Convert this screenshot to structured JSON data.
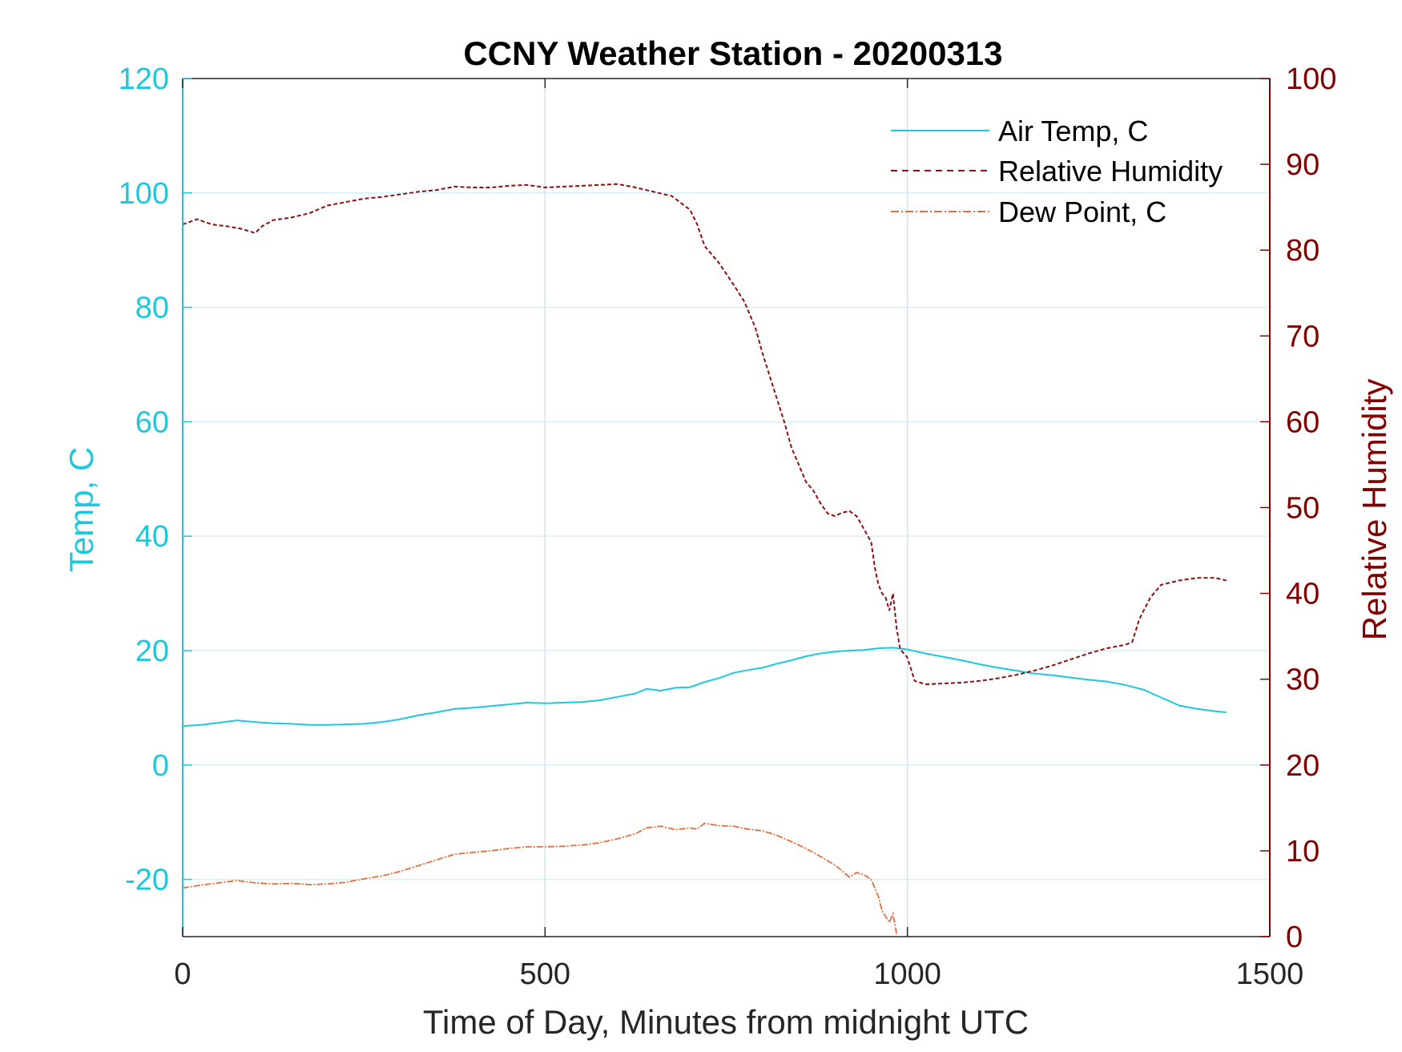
{
  "chart_data": {
    "type": "line",
    "title": "CCNY Weather Station - 20200313",
    "xlabel": "Time of Day, Minutes from midnight UTC",
    "ylabel_left": "Temp, C",
    "ylabel_right": "Relative Humidity",
    "xlim": [
      0,
      1500
    ],
    "ylim_left": [
      -30,
      120
    ],
    "ylim_right": [
      0,
      100
    ],
    "xticks": [
      0,
      500,
      1000,
      1500
    ],
    "xtick_labels": [
      "0",
      "500",
      "1000",
      "1500"
    ],
    "yticks_left": [
      -20,
      0,
      20,
      40,
      60,
      80,
      100,
      120
    ],
    "ytick_labels_left": [
      "-20",
      "0",
      "20",
      "40",
      "60",
      "80",
      "100",
      "120"
    ],
    "yticks_right": [
      0,
      10,
      20,
      30,
      40,
      50,
      60,
      70,
      80,
      90,
      100
    ],
    "ytick_labels_right": [
      "0",
      "10",
      "20",
      "30",
      "40",
      "50",
      "60",
      "70",
      "80",
      "90",
      "100"
    ],
    "grid": true,
    "legend_position": "top-right",
    "colors": {
      "left_axis": "#1ec8dc",
      "right_axis": "#800000",
      "grid": "#d8e2ea",
      "hgrid": "#d4f1f7",
      "air_temp": "#1ec8dc",
      "humidity": "#8b1010",
      "dew_point": "#e07040"
    },
    "series": [
      {
        "name": "Air Temp, C",
        "axis": "left",
        "style": "solid",
        "x": [
          0,
          25,
          50,
          75,
          100,
          125,
          150,
          175,
          200,
          225,
          250,
          275,
          300,
          325,
          350,
          375,
          400,
          425,
          450,
          475,
          500,
          525,
          550,
          575,
          600,
          625,
          640,
          660,
          680,
          700,
          720,
          740,
          760,
          780,
          800,
          820,
          840,
          860,
          880,
          900,
          920,
          940,
          960,
          980,
          1000,
          1025,
          1050,
          1075,
          1100,
          1125,
          1150,
          1175,
          1200,
          1225,
          1250,
          1275,
          1300,
          1325,
          1350,
          1375,
          1400,
          1425,
          1440
        ],
        "values": [
          6.8,
          7.0,
          7.4,
          7.8,
          7.5,
          7.3,
          7.2,
          7.0,
          7.0,
          7.1,
          7.2,
          7.5,
          8.0,
          8.7,
          9.2,
          9.8,
          10.0,
          10.3,
          10.6,
          10.9,
          10.8,
          10.9,
          11.0,
          11.3,
          11.9,
          12.5,
          13.3,
          13.0,
          13.5,
          13.6,
          14.5,
          15.2,
          16.1,
          16.6,
          17.0,
          17.7,
          18.3,
          19.0,
          19.5,
          19.8,
          20.0,
          20.1,
          20.4,
          20.5,
          20.2,
          19.5,
          18.9,
          18.3,
          17.6,
          17.0,
          16.5,
          16.0,
          15.7,
          15.3,
          14.9,
          14.6,
          14.0,
          13.2,
          11.8,
          10.4,
          9.8,
          9.4,
          9.2
        ]
      },
      {
        "name": "Relative Humidity",
        "axis": "right",
        "style": "dashed",
        "x": [
          0,
          20,
          40,
          60,
          80,
          100,
          110,
          125,
          150,
          175,
          200,
          225,
          250,
          275,
          300,
          325,
          350,
          375,
          400,
          425,
          450,
          475,
          500,
          525,
          550,
          575,
          600,
          625,
          650,
          675,
          700,
          710,
          720,
          740,
          760,
          775,
          790,
          800,
          815,
          830,
          840,
          850,
          860,
          870,
          880,
          890,
          900,
          910,
          920,
          930,
          940,
          950,
          955,
          960,
          965,
          970,
          975,
          980,
          985,
          990,
          1000,
          1010,
          1025,
          1050,
          1075,
          1100,
          1125,
          1150,
          1175,
          1200,
          1225,
          1250,
          1275,
          1300,
          1310,
          1320,
          1335,
          1350,
          1375,
          1400,
          1425,
          1440
        ],
        "values": [
          83.0,
          83.6,
          83.0,
          82.8,
          82.5,
          82.0,
          82.8,
          83.5,
          83.8,
          84.3,
          85.2,
          85.6,
          86.0,
          86.2,
          86.5,
          86.8,
          87.0,
          87.4,
          87.3,
          87.3,
          87.5,
          87.6,
          87.3,
          87.4,
          87.5,
          87.6,
          87.7,
          87.3,
          86.8,
          86.3,
          84.7,
          83.0,
          80.5,
          78.5,
          76.0,
          74.0,
          71.0,
          68.0,
          64.0,
          60.0,
          57.0,
          55.0,
          53.0,
          52.0,
          50.5,
          49.3,
          49.0,
          49.4,
          49.6,
          49.0,
          47.5,
          46.0,
          43.0,
          41.0,
          40.0,
          39.5,
          38.0,
          40.0,
          36.0,
          33.5,
          32.5,
          29.8,
          29.4,
          29.5,
          29.6,
          29.8,
          30.1,
          30.5,
          31.0,
          31.6,
          32.3,
          33.0,
          33.6,
          34.0,
          34.3,
          37.0,
          39.5,
          41.0,
          41.5,
          41.8,
          41.8,
          41.5
        ]
      },
      {
        "name": "Dew Point, C",
        "axis": "left",
        "style": "dashdot",
        "x": [
          0,
          25,
          50,
          75,
          100,
          125,
          150,
          175,
          200,
          225,
          250,
          275,
          300,
          325,
          350,
          375,
          400,
          425,
          450,
          475,
          500,
          525,
          550,
          575,
          600,
          625,
          640,
          660,
          680,
          700,
          710,
          720,
          740,
          760,
          780,
          800,
          820,
          840,
          860,
          880,
          900,
          910,
          920,
          930,
          940,
          950,
          960,
          965,
          970,
          975,
          980,
          985
        ],
        "values": [
          -21.5,
          -21.0,
          -20.6,
          -20.2,
          -20.6,
          -20.8,
          -20.7,
          -20.9,
          -20.8,
          -20.5,
          -19.9,
          -19.4,
          -18.6,
          -17.6,
          -16.6,
          -15.6,
          -15.3,
          -15.0,
          -14.6,
          -14.3,
          -14.3,
          -14.2,
          -14.0,
          -13.6,
          -12.9,
          -12.0,
          -11.0,
          -10.7,
          -11.3,
          -11.0,
          -11.2,
          -10.2,
          -10.6,
          -10.7,
          -11.2,
          -11.5,
          -12.3,
          -13.4,
          -14.6,
          -16.0,
          -17.5,
          -18.5,
          -19.6,
          -18.8,
          -19.2,
          -20.0,
          -23.0,
          -25.5,
          -26.5,
          -27.5,
          -26.0,
          -29.5
        ]
      }
    ]
  }
}
